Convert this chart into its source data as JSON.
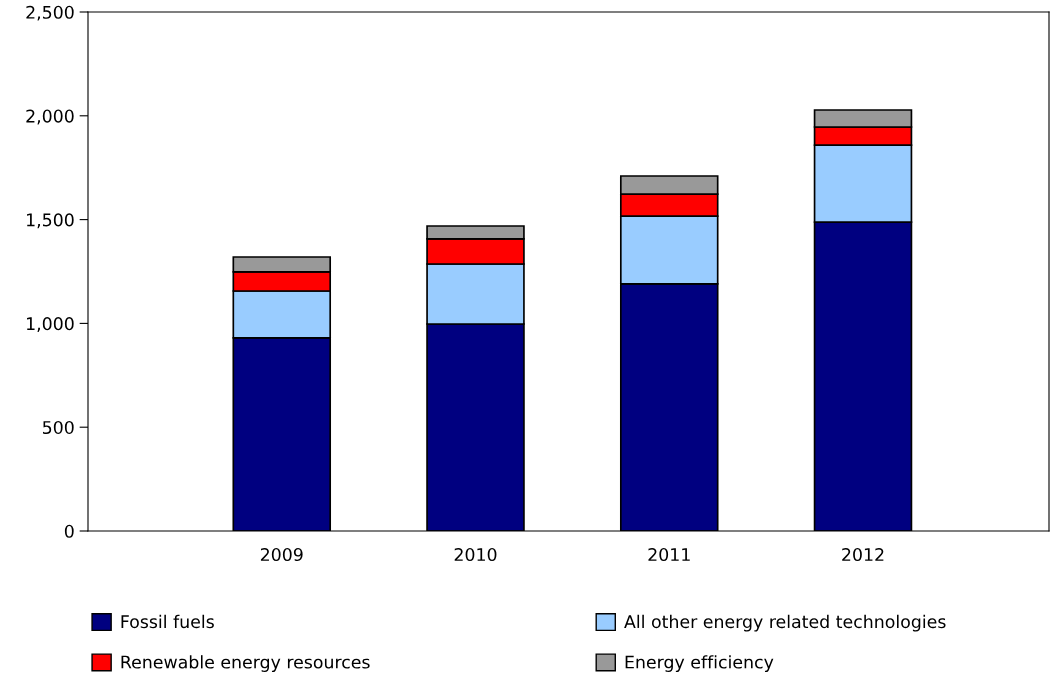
{
  "chart_data": {
    "type": "bar",
    "stacked": true,
    "categories": [
      "2009",
      "2010",
      "2011",
      "2012"
    ],
    "series": [
      {
        "name": "Fossil fuels",
        "color": "#000080",
        "values": [
          930,
          997,
          1190,
          1488
        ]
      },
      {
        "name": "All other energy related technologies",
        "color": "#99ccff",
        "values": [
          226,
          289,
          327,
          371
        ]
      },
      {
        "name": "Renewable energy resources",
        "color": "#ff0000",
        "values": [
          92,
          121,
          106,
          87
        ]
      },
      {
        "name": "Energy efficiency",
        "color": "#999999",
        "values": [
          72,
          62,
          87,
          82
        ]
      }
    ],
    "ylim": [
      0,
      2500
    ],
    "yticks": [
      0,
      {
        "value": 500,
        "label": "500"
      },
      {
        "value": 1000,
        "label": "1,000"
      },
      {
        "value": 1500,
        "label": "1,500"
      },
      {
        "value": 2000,
        "label": "2,000"
      },
      {
        "value": 2500,
        "label": "2,500"
      }
    ],
    "grid": false,
    "legend": "bottom"
  }
}
